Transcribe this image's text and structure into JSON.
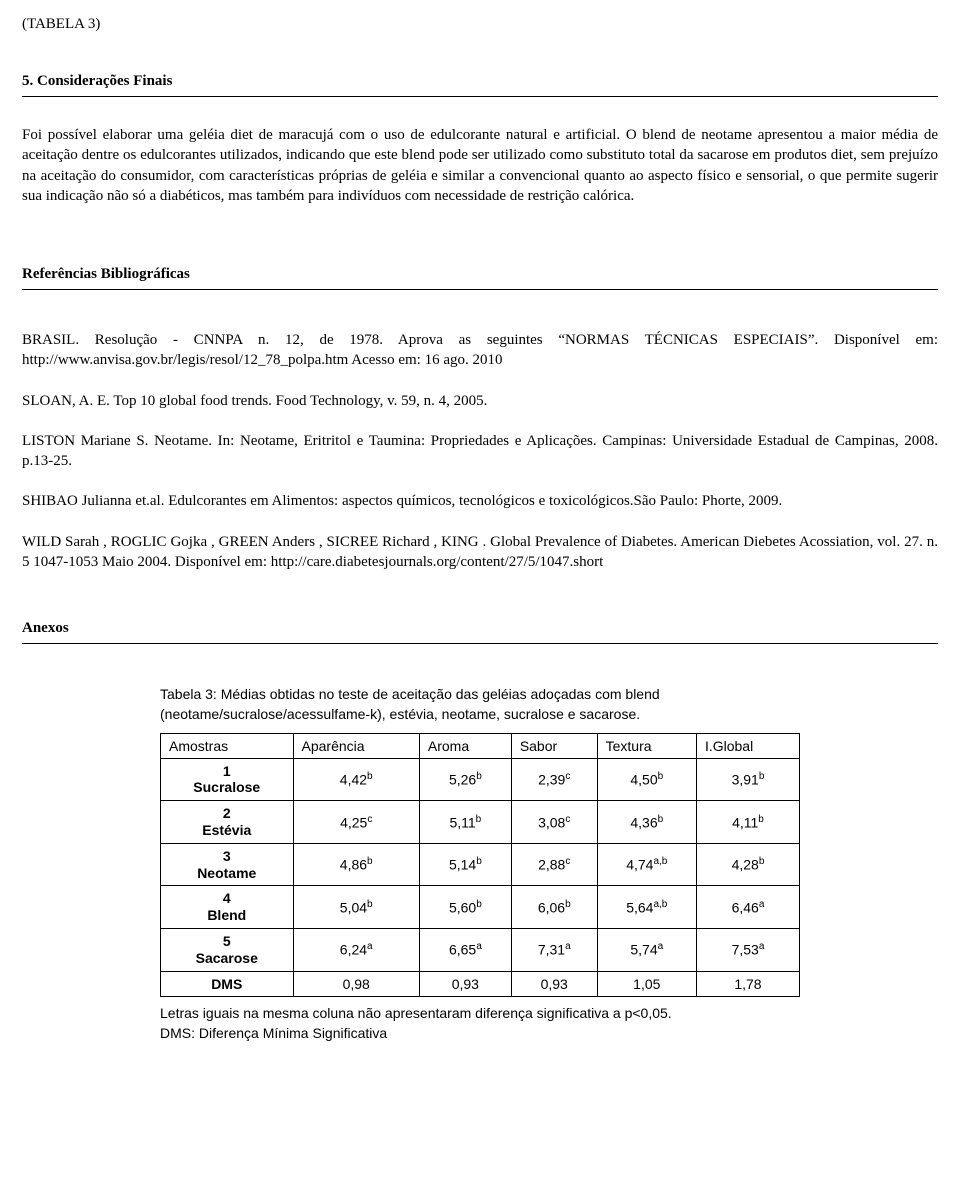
{
  "top_label": "(TABELA 3)",
  "section_considerations": "5. Considerações Finais",
  "considerations_body": "Foi possível elaborar uma geléia diet de maracujá com o uso de edulcorante natural e artificial. O blend de neotame apresentou a maior média de aceitação dentre os edulcorantes utilizados, indicando que este blend pode ser utilizado como substituto total da sacarose em produtos diet, sem prejuízo na aceitação do consumidor, com características próprias de geléia e similar a convencional quanto ao aspecto físico e sensorial, o que permite sugerir sua indicação não só a diabéticos, mas também para indivíduos com necessidade de restrição calórica.",
  "section_references": "Referências Bibliográficas",
  "refs": [
    "BRASIL. Resolução - CNNPA n. 12, de 1978. Aprova as seguintes “NORMAS TÉCNICAS ESPECIAIS”. Disponível em: http://www.anvisa.gov.br/legis/resol/12_78_polpa.htm Acesso em: 16 ago. 2010",
    "SLOAN, A. E. Top 10 global food trends. Food Technology, v. 59, n. 4, 2005.",
    "LISTON Mariane S. Neotame. In: Neotame, Eritritol e Taumina: Propriedades e Aplicações. Campinas: Universidade Estadual de Campinas, 2008. p.13-25.",
    "SHIBAO Julianna et.al. Edulcorantes em Alimentos: aspectos químicos, tecnológicos e toxicológicos.São Paulo: Phorte, 2009.",
    "WILD Sarah , ROGLIC Gojka , GREEN Anders , SICREE Richard , KING . Global Prevalence of Diabetes. American Diebetes Acossiation, vol. 27. n. 5 1047-1053 Maio 2004. Disponível em: http://care.diabetesjournals.org/content/27/5/1047.short"
  ],
  "section_annex": "Anexos",
  "table": {
    "caption": "Tabela 3: Médias obtidas no teste de aceitação das geléias adoçadas com blend (neotame/sucralose/acessulfame-k), estévia, neotame, sucralose e sacarose.",
    "headers": [
      "Amostras",
      "Aparência",
      "Aroma",
      "Sabor",
      "Textura",
      "I.Global"
    ],
    "rows": [
      {
        "sample_no": "1",
        "sample_name": "Sucralose",
        "vals": [
          {
            "v": "4,42",
            "s": "b"
          },
          {
            "v": "5,26",
            "s": "b"
          },
          {
            "v": "2,39",
            "s": "c"
          },
          {
            "v": "4,50",
            "s": "b"
          },
          {
            "v": "3,91",
            "s": "b"
          }
        ]
      },
      {
        "sample_no": "2",
        "sample_name": "Estévia",
        "vals": [
          {
            "v": "4,25",
            "s": "c"
          },
          {
            "v": "5,11",
            "s": "b"
          },
          {
            "v": "3,08",
            "s": "c"
          },
          {
            "v": "4,36",
            "s": "b"
          },
          {
            "v": "4,11",
            "s": "b"
          }
        ]
      },
      {
        "sample_no": "3",
        "sample_name": "Neotame",
        "vals": [
          {
            "v": "4,86",
            "s": "b"
          },
          {
            "v": "5,14",
            "s": "b"
          },
          {
            "v": "2,88",
            "s": "c"
          },
          {
            "v": "4,74",
            "s": "a,b"
          },
          {
            "v": "4,28",
            "s": "b"
          }
        ]
      },
      {
        "sample_no": "4",
        "sample_name": "Blend",
        "vals": [
          {
            "v": "5,04",
            "s": "b"
          },
          {
            "v": "5,60",
            "s": "b"
          },
          {
            "v": "6,06",
            "s": "b"
          },
          {
            "v": "5,64",
            "s": "a,b"
          },
          {
            "v": "6,46",
            "s": "a"
          }
        ]
      },
      {
        "sample_no": "5",
        "sample_name": "Sacarose",
        "vals": [
          {
            "v": "6,24",
            "s": "a"
          },
          {
            "v": "6,65",
            "s": "a"
          },
          {
            "v": "7,31",
            "s": "a"
          },
          {
            "v": "5,74",
            "s": "a"
          },
          {
            "v": "7,53",
            "s": "a"
          }
        ]
      }
    ],
    "dms_label": "DMS",
    "dms_vals": [
      "0,98",
      "0,93",
      "0,93",
      "1,05",
      "1,78"
    ],
    "footer1": "Letras iguais na mesma coluna não apresentaram diferença significativa a p<0,05.",
    "footer2": "DMS: Diferença Mínima Significativa"
  }
}
